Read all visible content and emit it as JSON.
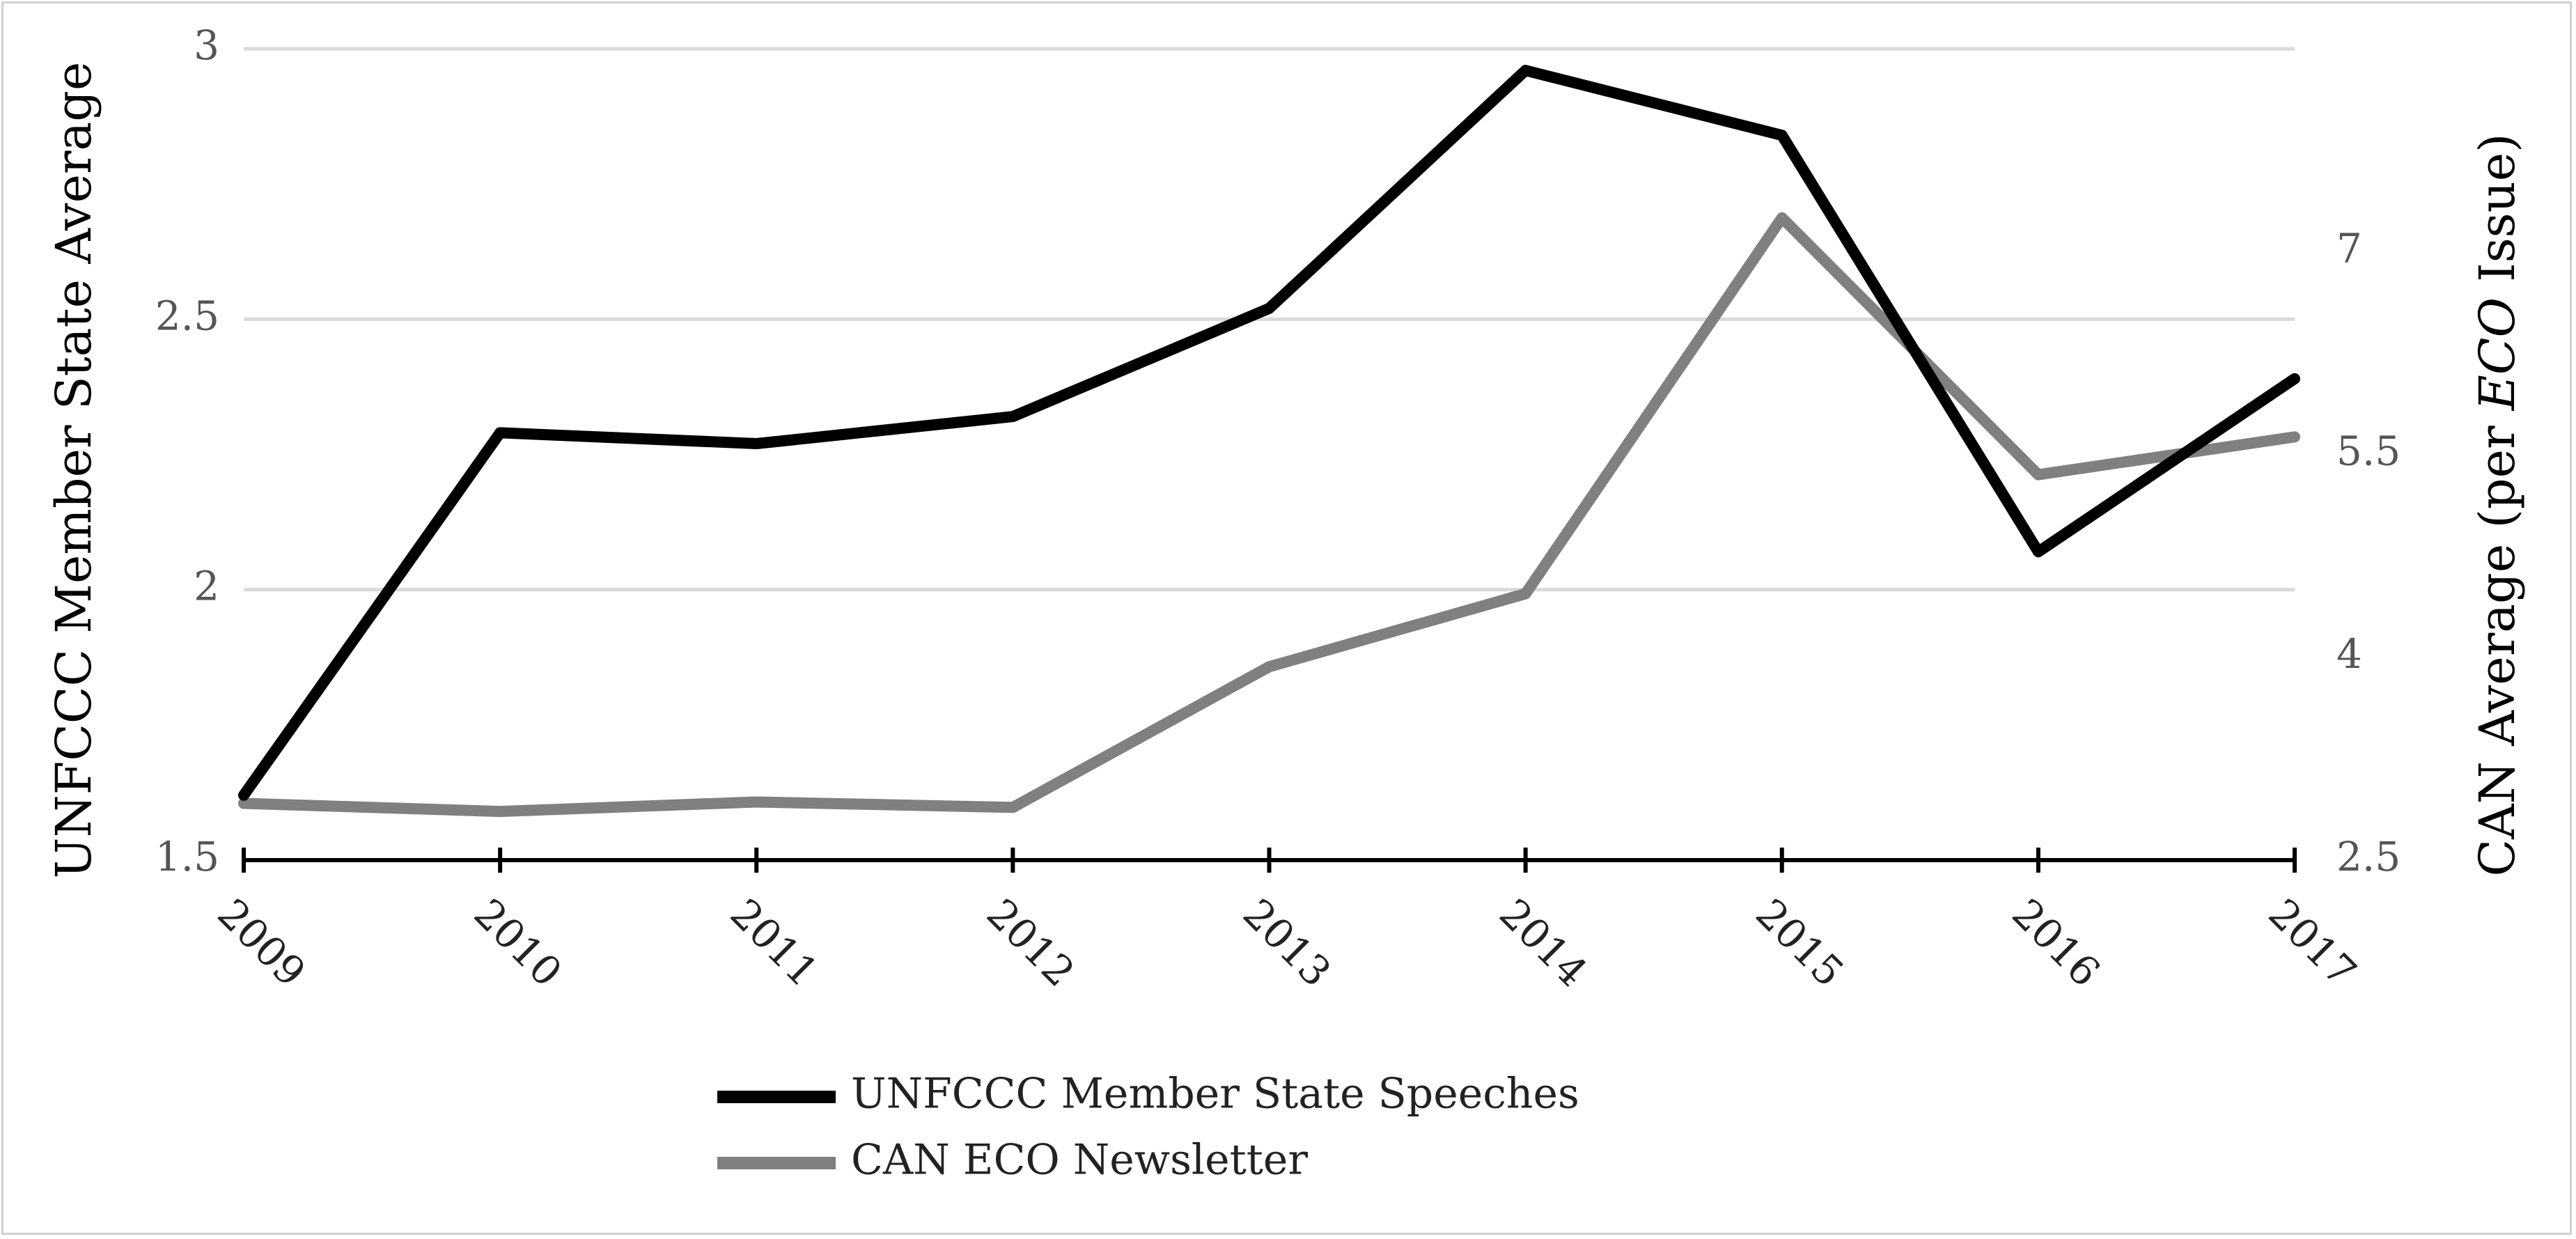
{
  "chart_data": {
    "type": "line",
    "x": [
      "2009",
      "2010",
      "2011",
      "2012",
      "2013",
      "2014",
      "2015",
      "2016",
      "2017"
    ],
    "series": [
      {
        "name": "UNFCCC Member State Speeches",
        "axis": "left",
        "color": "#000000",
        "values": [
          1.62,
          2.29,
          2.27,
          2.32,
          2.52,
          2.96,
          2.84,
          2.07,
          2.39
        ]
      },
      {
        "name": "CAN ECO Newsletter",
        "axis": "right",
        "color": "#808080",
        "values": [
          2.92,
          2.86,
          2.93,
          2.89,
          3.93,
          4.47,
          7.25,
          5.35,
          5.63
        ]
      }
    ],
    "y_left": {
      "label": "UNFCCC Member State Average",
      "range": [
        1.5,
        3
      ],
      "ticks": [
        "1.5",
        "2",
        "2.5",
        "3"
      ]
    },
    "y_right": {
      "label_parts": [
        "CAN Average (per ",
        "ECO",
        " Issue)"
      ],
      "range": [
        2.5,
        8.5
      ],
      "ticks": [
        "2.5",
        "4",
        "5.5",
        "7"
      ]
    },
    "grid": true,
    "legend_position": "bottom-center"
  }
}
